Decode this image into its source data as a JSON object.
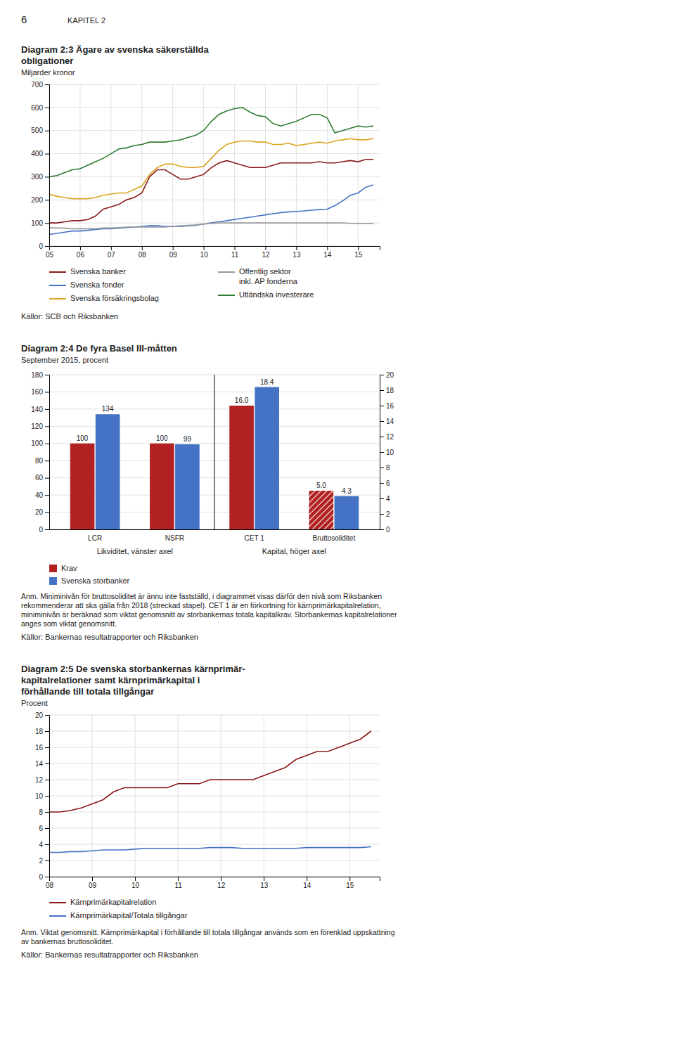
{
  "page_title": "6",
  "chapter": "KAPITEL 2",
  "chart_data": [
    {
      "type": "line",
      "title": "Diagram 2:3 Ägare av svenska säkerställda\nobligationer",
      "subtitle": "Miljarder kronor",
      "source": "Källor: SCB och Riksbanken",
      "x": [
        2005.0,
        2005.25,
        2005.5,
        2005.75,
        2006.0,
        2006.25,
        2006.5,
        2006.75,
        2007.0,
        2007.25,
        2007.5,
        2007.75,
        2008.0,
        2008.25,
        2008.5,
        2008.75,
        2009.0,
        2009.25,
        2009.5,
        2009.75,
        2010.0,
        2010.25,
        2010.5,
        2010.75,
        2011.0,
        2011.25,
        2011.5,
        2011.75,
        2012.0,
        2012.25,
        2012.5,
        2012.75,
        2013.0,
        2013.25,
        2013.5,
        2013.75,
        2014.0,
        2014.25,
        2014.5,
        2014.75,
        2015.0,
        2015.25,
        2015.5
      ],
      "xlim": [
        2005,
        2015.7
      ],
      "xticks": [
        {
          "value": 2005,
          "label": "05"
        },
        {
          "value": 2006,
          "label": "06"
        },
        {
          "value": 2007,
          "label": "07"
        },
        {
          "value": 2008,
          "label": "08"
        },
        {
          "value": 2009,
          "label": "09"
        },
        {
          "value": 2010,
          "label": "10"
        },
        {
          "value": 2011,
          "label": "11"
        },
        {
          "value": 2012,
          "label": "12"
        },
        {
          "value": 2013,
          "label": "13"
        },
        {
          "value": 2014,
          "label": "14"
        },
        {
          "value": 2015,
          "label": "15"
        }
      ],
      "ylim": [
        0,
        700
      ],
      "yticks": [
        0,
        100,
        200,
        300,
        400,
        500,
        600,
        700
      ],
      "grid": true,
      "legend": "bottom",
      "series": [
        {
          "name": "Svenska banker",
          "color": "#8B1A1A",
          "values": [
            100,
            100,
            105,
            110,
            110,
            115,
            130,
            160,
            170,
            180,
            200,
            210,
            230,
            300,
            330,
            330,
            310,
            290,
            290,
            300,
            310,
            340,
            360,
            370,
            360,
            350,
            340,
            340,
            340,
            350,
            360,
            360,
            360,
            360,
            360,
            365,
            360,
            360,
            365,
            370,
            365,
            375,
            375
          ]
        },
        {
          "name": "Svenska fonder",
          "color": "#4472C4",
          "values": [
            50,
            55,
            60,
            65,
            65,
            68,
            72,
            75,
            75,
            78,
            80,
            82,
            85,
            88,
            88,
            85,
            85,
            85,
            88,
            90,
            95,
            100,
            105,
            110,
            115,
            120,
            125,
            130,
            135,
            140,
            145,
            148,
            150,
            152,
            155,
            158,
            160,
            175,
            195,
            220,
            230,
            255,
            265
          ]
        },
        {
          "name": "Svenska försäkringsbolag",
          "color": "#DAA520",
          "values": [
            225,
            215,
            210,
            205,
            205,
            205,
            210,
            220,
            225,
            230,
            230,
            245,
            260,
            310,
            340,
            355,
            355,
            345,
            340,
            340,
            345,
            380,
            415,
            440,
            450,
            455,
            455,
            450,
            450,
            440,
            440,
            445,
            435,
            440,
            445,
            450,
            445,
            455,
            460,
            465,
            460,
            460,
            465
          ]
        },
        {
          "name": "Offentlig sektor\ninkl. AP fonderna",
          "color": "#999999",
          "values": [
            80,
            78,
            78,
            75,
            75,
            75,
            75,
            78,
            78,
            80,
            82,
            82,
            82,
            82,
            82,
            82,
            85,
            88,
            90,
            92,
            95,
            98,
            100,
            100,
            100,
            100,
            100,
            100,
            100,
            100,
            100,
            100,
            100,
            100,
            100,
            100,
            100,
            100,
            100,
            98,
            98,
            98,
            97
          ]
        },
        {
          "name": "Utländska investerare",
          "color": "#2E7D32",
          "values": [
            300,
            305,
            318,
            330,
            335,
            350,
            365,
            380,
            400,
            420,
            425,
            435,
            440,
            450,
            450,
            450,
            455,
            460,
            470,
            480,
            500,
            540,
            570,
            585,
            595,
            600,
            580,
            565,
            560,
            530,
            520,
            530,
            540,
            555,
            570,
            570,
            555,
            490,
            500,
            510,
            520,
            515,
            520
          ]
        }
      ]
    },
    {
      "type": "bar",
      "title": "Diagram 2:4 De fyra Basel III-måtten",
      "subtitle": "September 2015, procent",
      "categories": [
        "LCR",
        "NSFR",
        "CET 1",
        "Bruttosoliditet"
      ],
      "group_labels": [
        "Likviditet, vänster axel",
        "Kapital, höger axel"
      ],
      "series": [
        {
          "name": "Krav",
          "color": "#B22222",
          "axis": [
            "y",
            "y",
            "y2",
            "y2"
          ],
          "line_style": [
            "solid",
            "solid",
            "solid",
            "hatched"
          ],
          "values": [
            100,
            100,
            16.0,
            5.0
          ],
          "value_labels": [
            "100",
            "100",
            "16.0",
            "5.0"
          ]
        },
        {
          "name": "Svenska storbanker",
          "color": "#4472C4",
          "axis": [
            "y",
            "y",
            "y2",
            "y2"
          ],
          "values": [
            134,
            99,
            18.4,
            4.3
          ],
          "value_labels": [
            "134",
            "99",
            "18.4",
            "4.3"
          ]
        }
      ],
      "ylim": [
        0,
        180
      ],
      "yticks": [
        0,
        20,
        40,
        60,
        80,
        100,
        120,
        140,
        160,
        180
      ],
      "y2lim": [
        0,
        20
      ],
      "y2ticks": [
        0,
        2,
        4,
        6,
        8,
        10,
        12,
        14,
        16,
        18,
        20
      ],
      "grid": "y",
      "data_labels": true,
      "legend": "bottom",
      "note": "Anm. Miniminivån för bruttosoliditet är ännu inte fastställd, i diagrammet visas därför den nivå som Riksbanken rekommenderar att ska gälla från 2018 (streckad stapel). CET 1 är en förkortning för kärnprimärkapitalrelation, miniminivån är beräknad som viktat genomsnitt av storbankernas totala kapitalkrav. Storbankernas kapitalrelationer anges som viktat genomsnitt.",
      "source": "Källor: Bankernas resultatrapporter och Riksbanken"
    },
    {
      "type": "line",
      "title": "Diagram 2:5 De svenska storbankernas kärnprimär-\nkapitalrelationer samt kärnprimärkapital i\nförhållande till totala tillgångar",
      "subtitle": "Procent",
      "x": [
        2008.0,
        2008.25,
        2008.5,
        2008.75,
        2009.0,
        2009.25,
        2009.5,
        2009.75,
        2010.0,
        2010.25,
        2010.5,
        2010.75,
        2011.0,
        2011.25,
        2011.5,
        2011.75,
        2012.0,
        2012.25,
        2012.5,
        2012.75,
        2013.0,
        2013.25,
        2013.5,
        2013.75,
        2014.0,
        2014.25,
        2014.5,
        2014.75,
        2015.0,
        2015.25,
        2015.5
      ],
      "xlim": [
        2008,
        2015.7
      ],
      "xticks": [
        {
          "value": 2008,
          "label": "08"
        },
        {
          "value": 2009,
          "label": "09"
        },
        {
          "value": 2010,
          "label": "10"
        },
        {
          "value": 2011,
          "label": "11"
        },
        {
          "value": 2012,
          "label": "12"
        },
        {
          "value": 2013,
          "label": "13"
        },
        {
          "value": 2014,
          "label": "14"
        },
        {
          "value": 2015,
          "label": "15"
        }
      ],
      "ylim": [
        0,
        20
      ],
      "yticks": [
        0,
        2,
        4,
        6,
        8,
        10,
        12,
        14,
        16,
        18,
        20
      ],
      "grid": true,
      "legend": "bottom",
      "series": [
        {
          "name": "Kärnprimärkapitalrelation",
          "color": "#8B1A1A",
          "values": [
            8.0,
            8.0,
            8.2,
            8.5,
            9.0,
            9.5,
            10.5,
            11.0,
            11.0,
            11.0,
            11.0,
            11.0,
            11.5,
            11.5,
            11.5,
            12.0,
            12.0,
            12.0,
            12.0,
            12.0,
            12.5,
            13.0,
            13.5,
            14.5,
            15.0,
            15.5,
            15.5,
            16.0,
            16.5,
            17.0,
            18.0
          ]
        },
        {
          "name": "Kärnprimärkapital/Totala tillgångar",
          "color": "#4472C4",
          "values": [
            3.0,
            3.0,
            3.1,
            3.1,
            3.2,
            3.3,
            3.3,
            3.3,
            3.4,
            3.5,
            3.5,
            3.5,
            3.5,
            3.5,
            3.5,
            3.6,
            3.6,
            3.6,
            3.5,
            3.5,
            3.5,
            3.5,
            3.5,
            3.5,
            3.6,
            3.6,
            3.6,
            3.6,
            3.6,
            3.6,
            3.7
          ]
        }
      ],
      "note": "Anm. Viktat genomsnitt. Kärnprimärkapital i förhållande till totala tillgångar används som en förenklad uppskattning av bankernas bruttosoliditet.",
      "source": "Källor: Bankernas resultatrapporter och Riksbanken"
    }
  ]
}
